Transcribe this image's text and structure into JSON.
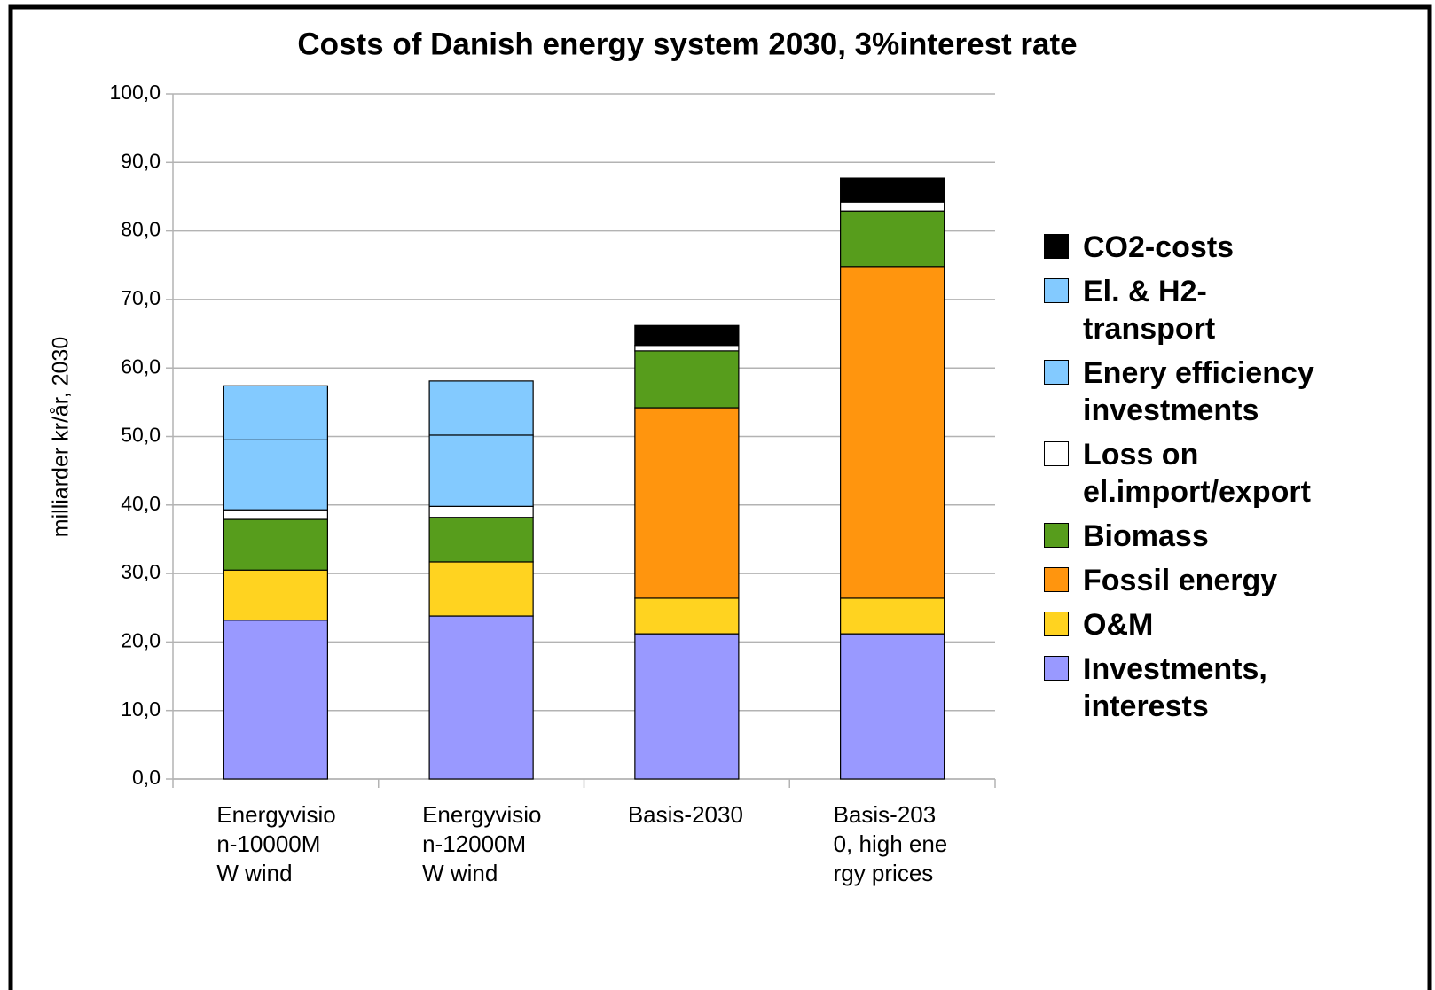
{
  "chart_data": {
    "type": "stacked_bar",
    "title": "Costs of Danish energy system 2030, 3%interest rate",
    "y_label": "milliarder kr/år, 2030",
    "categories": [
      "Energyvision-10000MW wind",
      "Energyvision-12000MW wind",
      "Basis-2030",
      "Basis-2030, high energy prices"
    ],
    "series": [
      {
        "name": "Investments, interests",
        "color": "#9999ff",
        "values": [
          23.2,
          23.8,
          21.2,
          21.2
        ]
      },
      {
        "name": "O&M",
        "color": "#ffd320",
        "values": [
          7.3,
          7.9,
          5.2,
          5.2
        ]
      },
      {
        "name": "Fossil energy",
        "color": "#ff950e",
        "values": [
          0,
          0,
          27.8,
          48.4
        ]
      },
      {
        "name": "Biomass",
        "color": "#579d1c",
        "values": [
          7.4,
          6.5,
          8.3,
          8.1
        ]
      },
      {
        "name": "Loss on el.import/export",
        "color": "#ffffff",
        "values": [
          1.4,
          1.6,
          0.8,
          1.3
        ]
      },
      {
        "name": "Enery efficiency investments",
        "color": "#83caff",
        "values": [
          10.2,
          10.4,
          0,
          0
        ]
      },
      {
        "name": "El. & H2-transport",
        "color": "#83caff",
        "values": [
          7.9,
          7.9,
          0,
          0
        ]
      },
      {
        "name": "CO2-costs",
        "color": "#000000",
        "values": [
          0,
          0,
          2.9,
          3.5
        ]
      }
    ],
    "ylim": [
      0,
      100
    ],
    "yticks": [
      {
        "value": 0,
        "label": "0,0"
      },
      {
        "value": 10,
        "label": "10,0"
      },
      {
        "value": 20,
        "label": "20,0"
      },
      {
        "value": 30,
        "label": "30,0"
      },
      {
        "value": 40,
        "label": "40,0"
      },
      {
        "value": 50,
        "label": "50,0"
      },
      {
        "value": 60,
        "label": "60,0"
      },
      {
        "value": 70,
        "label": "70,0"
      },
      {
        "value": 80,
        "label": "80,0"
      },
      {
        "value": 90,
        "label": "90,0"
      },
      {
        "value": 100,
        "label": "100,0"
      }
    ],
    "grid": true,
    "legend": "right"
  }
}
